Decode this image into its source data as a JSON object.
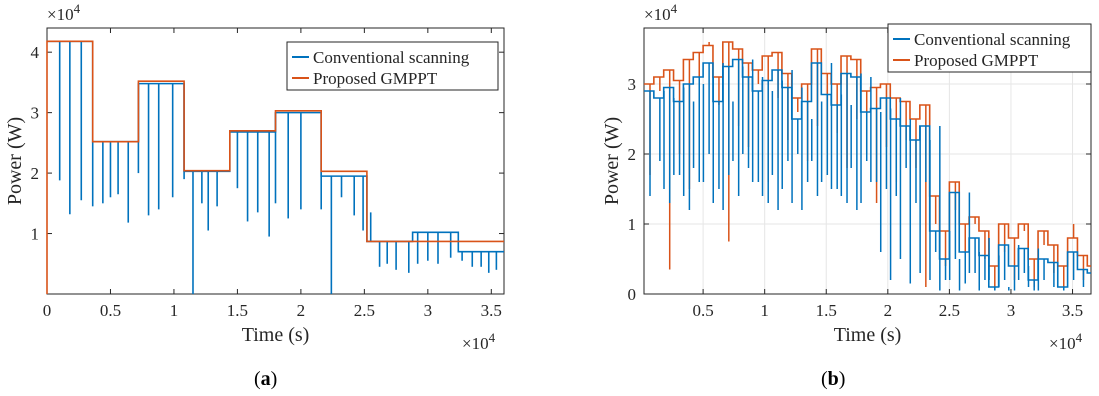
{
  "chart_data": [
    {
      "panel": "(a)",
      "type": "line",
      "title": "",
      "xlabel": "Time (s)",
      "ylabel": "Power (W)",
      "x_exponent_label": "×10^4",
      "y_exponent_label": "×10^4",
      "xlim": [
        0,
        3.6
      ],
      "ylim": [
        0,
        4.4
      ],
      "x_ticks": [
        "0",
        "0.5",
        "1",
        "1.5",
        "2",
        "2.5",
        "3",
        "3.5"
      ],
      "y_ticks": [
        "1",
        "2",
        "3",
        "4"
      ],
      "grid": false,
      "legend_position": "top-right",
      "series": [
        {
          "name": "Conventional scanning",
          "color": "#0072BD",
          "segments": [
            {
              "x0": 0.0,
              "x1": 0.36,
              "y": 4.18,
              "dips": [
                0.1,
                0.18,
                0.27
              ]
            },
            {
              "x0": 0.36,
              "x1": 0.72,
              "y": 2.52,
              "dips": [
                0.36,
                0.44,
                0.5,
                0.56,
                0.64
              ]
            },
            {
              "x0": 0.72,
              "x1": 1.08,
              "y": 3.48,
              "dips": [
                0.72,
                0.8,
                0.88,
                0.99,
                1.08
              ]
            },
            {
              "x0": 1.08,
              "x1": 1.44,
              "y": 2.03,
              "dips": [
                1.15,
                1.22,
                1.27,
                1.34
              ]
            },
            {
              "x0": 1.44,
              "x1": 1.8,
              "y": 2.68,
              "dips": [
                1.5,
                1.58,
                1.66,
                1.75
              ]
            },
            {
              "x0": 1.8,
              "x1": 2.16,
              "y": 3.0,
              "dips": [
                1.8,
                1.9,
                2.0,
                2.16
              ]
            },
            {
              "x0": 2.16,
              "x1": 2.52,
              "y": 1.95,
              "dips": [
                2.24,
                2.32,
                2.42,
                2.49
              ]
            },
            {
              "x0": 2.52,
              "x1": 2.88,
              "y": 0.87,
              "dips": [
                2.55,
                2.62,
                2.68,
                2.75,
                2.85
              ]
            },
            {
              "x0": 2.88,
              "x1": 3.24,
              "y": 1.02,
              "dips": [
                2.92,
                3.0,
                3.08,
                3.18
              ]
            },
            {
              "x0": 3.24,
              "x1": 3.6,
              "y": 0.7,
              "dips": [
                3.27,
                3.35,
                3.42,
                3.48,
                3.54
              ]
            }
          ],
          "dip_values": [
            1.88,
            1.32,
            1.55,
            1.45,
            1.5,
            1.6,
            1.65,
            1.18,
            2.0,
            1.3,
            1.4,
            1.6,
            1.9,
            0.0,
            1.5,
            1.05,
            1.45,
            1.75,
            1.2,
            1.35,
            0.95,
            1.5,
            1.25,
            1.4,
            1.4,
            0.0,
            1.6,
            1.3,
            1.05,
            1.35,
            0.45,
            0.5,
            0.4,
            0.35,
            0.5,
            0.55,
            0.5,
            0.6,
            0.55,
            0.45,
            0.45,
            0.35,
            0.4,
            0.45
          ]
        },
        {
          "name": "Proposed GMPPT",
          "color": "#D95319",
          "steps_x": [
            0,
            0.36,
            0.72,
            1.08,
            1.44,
            1.8,
            2.16,
            2.52,
            2.88,
            3.24,
            3.6
          ],
          "steps_y": [
            4.18,
            2.52,
            3.52,
            2.04,
            2.7,
            3.03,
            2.03,
            0.87,
            0.87,
            0.87
          ]
        }
      ]
    },
    {
      "panel": "(b)",
      "type": "line",
      "title": "",
      "xlabel": "Time (s)",
      "ylabel": "Power (W)",
      "x_exponent_label": "×10^4",
      "y_exponent_label": "×10^4",
      "xlim": [
        0.02,
        3.65
      ],
      "ylim": [
        0,
        3.8
      ],
      "x_ticks": [
        "0.5",
        "1",
        "1.5",
        "2",
        "2.5",
        "3",
        "3.5"
      ],
      "y_ticks": [
        "0",
        "1",
        "2",
        "3"
      ],
      "grid": true,
      "legend_position": "top-right",
      "series": [
        {
          "name": "Conventional scanning",
          "color": "#0072BD",
          "x": [
            0.02,
            0.1,
            0.18,
            0.26,
            0.34,
            0.42,
            0.5,
            0.58,
            0.66,
            0.74,
            0.82,
            0.9,
            0.98,
            1.06,
            1.14,
            1.22,
            1.3,
            1.38,
            1.46,
            1.54,
            1.62,
            1.7,
            1.78,
            1.86,
            1.94,
            2.02,
            2.1,
            2.18,
            2.26,
            2.34,
            2.42,
            2.5,
            2.58,
            2.66,
            2.74,
            2.82,
            2.9,
            2.98,
            3.06,
            3.14,
            3.22,
            3.3,
            3.38,
            3.46,
            3.54,
            3.62
          ],
          "y": [
            2.9,
            2.8,
            2.95,
            2.75,
            3.0,
            3.1,
            3.3,
            2.75,
            3.25,
            3.35,
            3.1,
            2.9,
            3.05,
            3.2,
            2.95,
            2.5,
            2.75,
            3.3,
            2.85,
            2.7,
            3.15,
            3.1,
            2.6,
            2.65,
            2.8,
            2.5,
            2.4,
            2.2,
            2.4,
            0.9,
            0.5,
            1.45,
            0.6,
            0.8,
            0.55,
            0.1,
            0.7,
            0.4,
            0.65,
            0.2,
            0.5,
            0.45,
            0.1,
            0.6,
            0.35,
            0.3
          ],
          "dip_values": [
            1.4,
            1.9,
            1.3,
            1.7,
            1.2,
            1.6,
            2.0,
            1.5,
            1.7,
            1.4,
            1.8,
            1.6,
            1.3,
            1.2,
            1.9,
            2.0,
            1.6,
            1.4,
            1.7,
            1.5,
            1.3,
            1.2,
            1.9,
            1.6,
            1.5,
            1.4,
            1.8,
            1.3,
            1.6,
            0.6,
            0.2,
            0.5,
            0.15,
            0.3,
            0.2,
            0.05,
            0.2,
            0.05,
            0.3,
            0.05,
            0.2,
            0.1,
            0.05,
            0.2,
            0.1,
            0.05
          ]
        },
        {
          "name": "Proposed GMPPT",
          "color": "#D95319",
          "x": [
            0.02,
            0.1,
            0.18,
            0.26,
            0.34,
            0.42,
            0.5,
            0.58,
            0.66,
            0.74,
            0.82,
            0.9,
            0.98,
            1.06,
            1.14,
            1.22,
            1.3,
            1.38,
            1.46,
            1.54,
            1.62,
            1.7,
            1.78,
            1.86,
            1.94,
            2.02,
            2.1,
            2.18,
            2.26,
            2.34,
            2.42,
            2.5,
            2.58,
            2.66,
            2.74,
            2.82,
            2.9,
            2.98,
            3.06,
            3.14,
            3.22,
            3.3,
            3.38,
            3.46,
            3.54,
            3.62
          ],
          "y": [
            3.0,
            3.1,
            3.2,
            3.05,
            3.35,
            3.45,
            3.55,
            3.1,
            3.6,
            3.5,
            3.3,
            3.2,
            3.4,
            3.45,
            3.15,
            2.8,
            3.0,
            3.5,
            3.15,
            3.0,
            3.4,
            3.35,
            2.9,
            2.95,
            3.0,
            2.8,
            2.75,
            2.5,
            2.7,
            1.4,
            0.9,
            1.6,
            1.0,
            1.1,
            0.9,
            0.4,
            1.0,
            0.8,
            1.0,
            0.5,
            0.9,
            0.7,
            0.4,
            0.8,
            0.55,
            0.4
          ],
          "spike_values": [
            1.7,
            2.9,
            0.35,
            2.0,
            1.5,
            2.6,
            3.6,
            2.7,
            0.75,
            2.4,
            2.1,
            3.0,
            1.6,
            2.8,
            2.2,
            2.6,
            1.9,
            2.4,
            2.2,
            2.3,
            1.8,
            2.5,
            2.0,
            1.3,
            2.1,
            1.6,
            2.2,
            1.8,
            0.1,
            1.0,
            0.4,
            1.2,
            0.3,
            1.0,
            0.5,
            0.05,
            0.6,
            0.2,
            0.9,
            0.1,
            0.7,
            0.3,
            0.1,
            1.0,
            0.2,
            0.1
          ]
        }
      ]
    }
  ],
  "captions": {
    "a": "(a)",
    "b": "(b)"
  }
}
